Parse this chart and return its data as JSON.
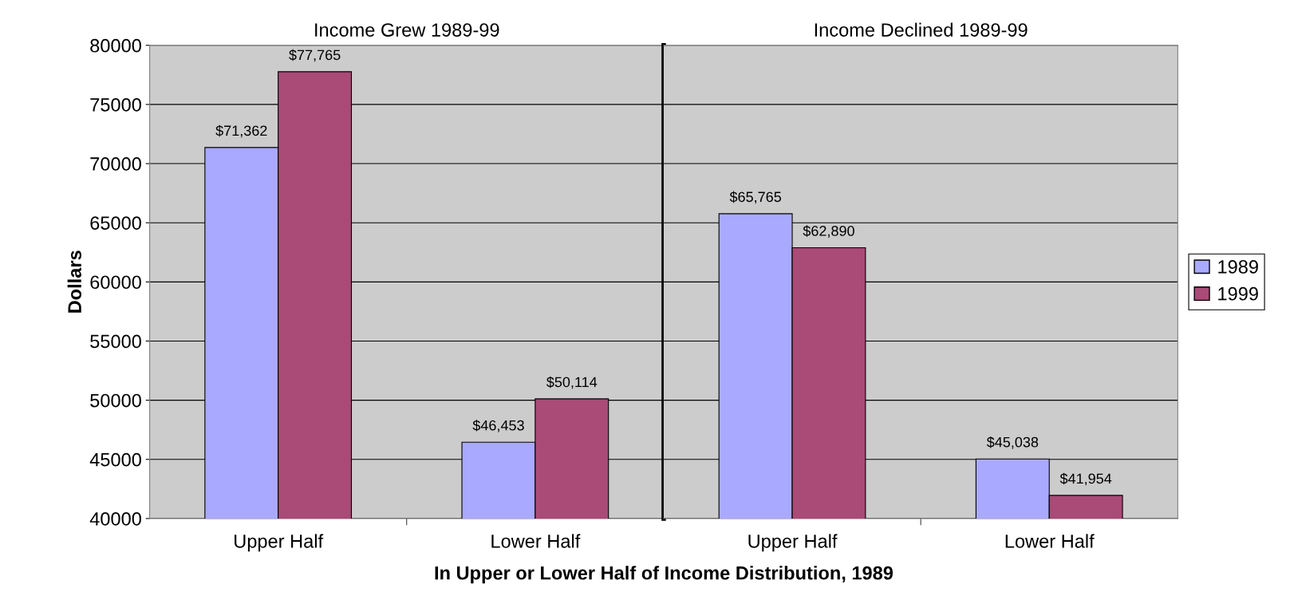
{
  "chart_data": [
    {
      "type": "bar",
      "title": "Income Grew 1989-99",
      "categories": [
        "Upper Half",
        "Lower Half"
      ],
      "xlabel": "In Upper or Lower Half of Income Distribution, 1989",
      "ylabel": "Dollars",
      "series": [
        {
          "color": "#a9a9ff",
          "values": [
            71362,
            46453
          ],
          "value_labels": [
            "$71,362",
            "$46,453"
          ]
        },
        {
          "color": "#a94a77",
          "values": [
            77765,
            50114
          ],
          "value_labels": [
            "$77,765",
            "$50,114"
          ]
        }
      ],
      "ylim": [
        40000,
        80000
      ],
      "yticks": [
        40000,
        45000,
        50000,
        55000,
        60000,
        65000,
        70000,
        75000,
        80000
      ],
      "grid": "y"
    },
    {
      "type": "bar",
      "title": "Income Declined 1989-99",
      "categories": [
        "Upper Half",
        "Lower Half"
      ],
      "series": [
        {
          "name": "1989",
          "color": "#a9a9ff",
          "values": [
            65765,
            45038
          ],
          "value_labels": [
            "$65,765",
            "$45,038"
          ]
        },
        {
          "name": "1999",
          "color": "#a94a77",
          "values": [
            62890,
            41954
          ],
          "value_labels": [
            "$62,890",
            "$41,954"
          ]
        }
      ],
      "ylim": [
        40000,
        80000
      ],
      "yticks": [
        40000,
        45000,
        50000,
        55000,
        60000,
        65000,
        70000,
        75000,
        80000
      ],
      "tick_labels": "x",
      "grid": "y",
      "legend": "right"
    }
  ]
}
